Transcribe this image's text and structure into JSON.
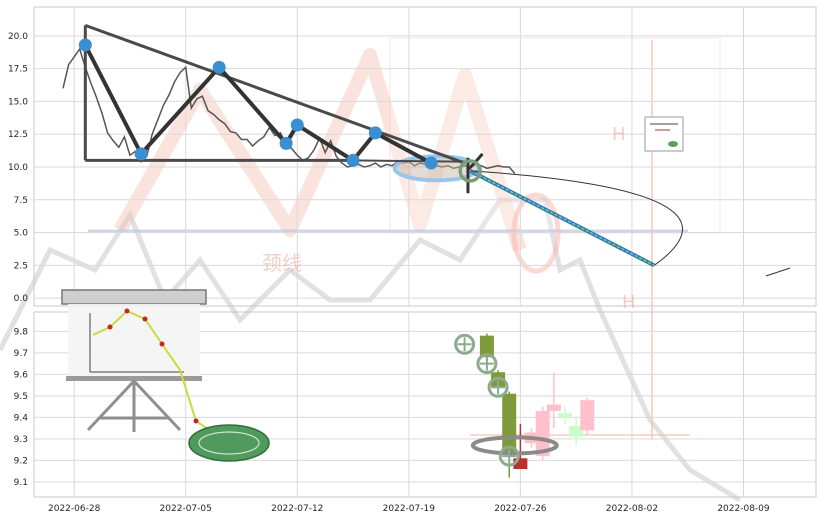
{
  "chart_data": {
    "type": "line",
    "panels": [
      {
        "id": "price",
        "ylim": [
          -0.6,
          22.2
        ],
        "yticks": [
          "0.0",
          "2.5",
          "5.0",
          "7.5",
          "10.0",
          "12.5",
          "15.0",
          "17.5",
          "20.0"
        ],
        "grid": true,
        "series": [
          {
            "kind": "price-line",
            "color": "#555555",
            "x": [
              0,
              0.5,
              1,
              1.5,
              2,
              2.5,
              3,
              3.5,
              4,
              4.5,
              5,
              5.5,
              6,
              6.5,
              7,
              7.5,
              8,
              8.5,
              9,
              9.5,
              10,
              10.5,
              11,
              11.5,
              12,
              12.5,
              13,
              13.5,
              14,
              14.5,
              15,
              15.5,
              16,
              16.5,
              17,
              17.5,
              18,
              18.5,
              19,
              19.5,
              20,
              20.5,
              21,
              21.5,
              22,
              22.5,
              23,
              23.5,
              24,
              24.5,
              25,
              25.5,
              26,
              26.5,
              27,
              27.5,
              28,
              28.5,
              29,
              29.5,
              30,
              30.5,
              31,
              31.5,
              32,
              32.5,
              33,
              33.5,
              34,
              34.5,
              35,
              35.5,
              36,
              36.5,
              37,
              37.5,
              38,
              38.5,
              39,
              39.5,
              40,
              40.5
            ],
            "y": [
              16.0,
              17.8,
              18.4,
              19.0,
              17.6,
              16.4,
              15.3,
              14.1,
              12.6,
              12.0,
              11.5,
              12.3,
              10.9,
              11.2,
              10.4,
              10.8,
              12.5,
              13.6,
              14.7,
              15.5,
              16.5,
              17.2,
              17.6,
              14.5,
              15.2,
              15.4,
              14.3,
              14.0,
              13.6,
              13.3,
              12.7,
              12.6,
              12.1,
              12.1,
              11.6,
              12.0,
              12.3,
              13.0,
              12.4,
              12.6,
              11.7,
              11.4,
              10.9,
              10.5,
              10.7,
              11.3,
              12.2,
              11.1,
              12.0,
              10.8,
              10.3,
              10.0,
              10.1,
              10.2,
              10.0,
              10.1,
              10.3,
              10.0,
              10.2,
              10.1,
              10.4,
              10.3,
              10.4,
              10.1,
              10.3,
              10.2,
              10.2,
              10.1,
              10.0,
              10.1,
              9.9,
              10.0,
              10.1,
              10.0,
              10.2,
              10.1,
              9.9,
              10.0,
              10.1,
              10.0,
              10.0,
              9.5
            ]
          }
        ],
        "pattern": {
          "zigzag": [
            [
              2,
              19.3
            ],
            [
              7,
              11.0
            ],
            [
              14,
              17.6
            ],
            [
              20,
              11.8
            ],
            [
              21,
              13.2
            ],
            [
              26,
              10.5
            ],
            [
              28,
              12.6
            ],
            [
              33,
              10.3
            ]
          ],
          "upper_trendline": [
            [
              2,
              20.8
            ],
            [
              36,
              10.3
            ]
          ],
          "neckline": [
            [
              2,
              10.5
            ],
            [
              26,
              10.5
            ]
          ],
          "support_line": [
            [
              26,
              10.5
            ],
            [
              36.5,
              10.4
            ]
          ],
          "target_line": [
            [
              36.5,
              9.7
            ],
            [
              53,
              2.5
            ]
          ],
          "consolidation_ellipse": [
            33.5,
            9.9
          ]
        }
      },
      {
        "id": "candles",
        "ylim": [
          9.03,
          9.89
        ],
        "yticks": [
          "9.1",
          "9.2",
          "9.3",
          "9.4",
          "9.5",
          "9.6",
          "9.7",
          "9.8"
        ],
        "grid": true,
        "candles": [
          {
            "x": 38,
            "open": 9.78,
            "close": 9.68,
            "high": 9.79,
            "low": 9.64,
            "color": "#7f9a3a"
          },
          {
            "x": 39,
            "open": 9.61,
            "close": 9.54,
            "high": 9.62,
            "low": 9.51,
            "color": "#7f9a3a"
          },
          {
            "x": 40,
            "open": 9.51,
            "close": 9.23,
            "high": 9.52,
            "low": 9.12,
            "color": "#7f9a3a"
          },
          {
            "x": 41,
            "open": 9.21,
            "close": 9.16,
            "high": 9.37,
            "low": 9.16,
            "color": "#b83232"
          },
          {
            "x": 42,
            "open": 9.28,
            "close": 9.33,
            "high": 9.35,
            "low": 9.26,
            "color": "#ffc0cb"
          },
          {
            "x": 43,
            "open": 9.22,
            "close": 9.43,
            "high": 9.45,
            "low": 9.2,
            "color": "#ffc0cb"
          },
          {
            "x": 44,
            "open": 9.43,
            "close": 9.46,
            "high": 9.61,
            "low": 9.35,
            "color": "#ffc0cb"
          },
          {
            "x": 45,
            "open": 9.42,
            "close": 9.4,
            "high": 9.45,
            "low": 9.37,
            "color": "#c8ffc8"
          },
          {
            "x": 46,
            "open": 9.36,
            "close": 9.31,
            "high": 9.4,
            "low": 9.27,
            "color": "#c8ffc8"
          },
          {
            "x": 47,
            "open": 9.34,
            "close": 9.48,
            "high": 9.49,
            "low": 9.32,
            "color": "#ffc0cb"
          }
        ],
        "markers": [
          [
            36,
            9.74
          ],
          [
            38,
            9.65
          ],
          [
            39,
            9.54
          ],
          [
            40,
            9.22
          ]
        ]
      }
    ],
    "x_axis": {
      "ticks": [
        {
          "x": 1,
          "label": "2022-06-28"
        },
        {
          "x": 11,
          "label": "2022-07-05"
        },
        {
          "x": 21,
          "label": "2022-07-12"
        },
        {
          "x": 31,
          "label": "2022-07-19"
        },
        {
          "x": 41,
          "label": "2022-07-26"
        },
        {
          "x": 51,
          "label": "2022-08-02"
        },
        {
          "x": 61,
          "label": "2022-08-09"
        }
      ]
    },
    "watermark": {
      "text": "颈线",
      "letters": [
        "H",
        "H"
      ],
      "color": "#f08070"
    }
  }
}
